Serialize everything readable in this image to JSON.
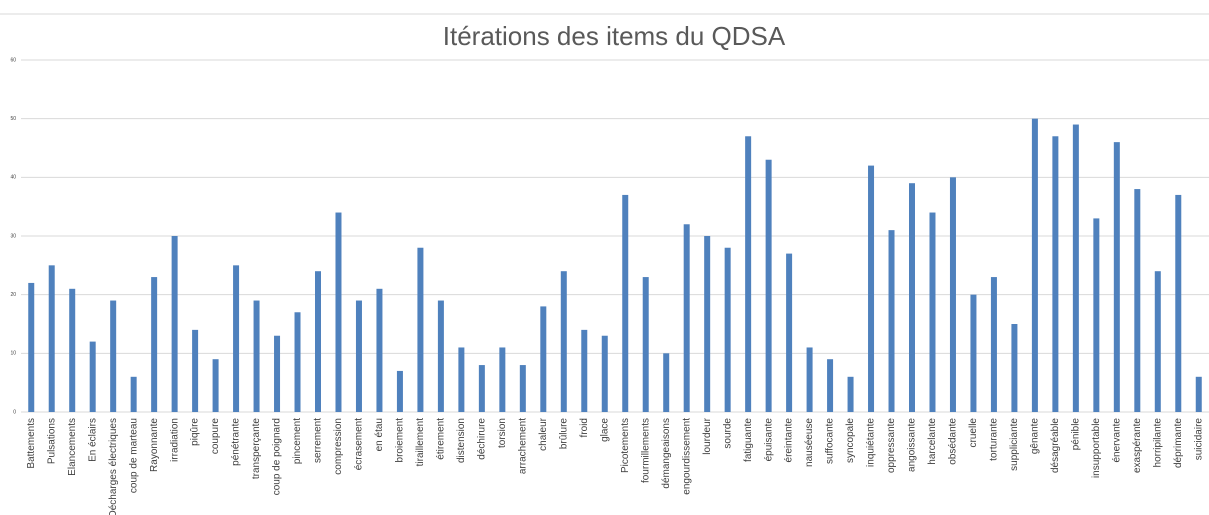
{
  "chart_data": {
    "type": "bar",
    "title": "Itérations des items du QDSA",
    "categories": [
      "Battements",
      "Pulsations",
      "Elancements",
      "En éclairs",
      "Décharges électriques",
      "coup de marteau",
      "Rayonnante",
      "irradiation",
      "piqûre",
      "coupure",
      "pénétrante",
      "transperçante",
      "coup de poignard",
      "pincement",
      "serrement",
      "compression",
      "écrasement",
      "en étau",
      "broiement",
      "tiraillement",
      "étirement",
      "distension",
      "déchirure",
      "torsion",
      "arrachement",
      "chaleur",
      "brûlure",
      "froid",
      "glace",
      "Picotements",
      "fourmillements",
      "démangeaisons",
      "engourdissement",
      "lourdeur",
      "sourde",
      "fatiguante",
      "épuisante",
      "éreintante",
      "nauséeuse",
      "suffocante",
      "syncopale",
      "inquiétante",
      "oppressante",
      "angoissante",
      "harcelante",
      "obsédante",
      "cruelle",
      "torturante",
      "suppliciante",
      "gênante",
      "désagréable",
      "pénible",
      "insupportable",
      "énervante",
      "exaspérante",
      "horripilante",
      "déprimante",
      "suicidaire"
    ],
    "values": [
      22,
      25,
      21,
      12,
      19,
      6,
      23,
      30,
      14,
      9,
      25,
      19,
      13,
      17,
      24,
      34,
      19,
      21,
      7,
      28,
      19,
      11,
      8,
      11,
      8,
      18,
      24,
      14,
      13,
      37,
      23,
      10,
      32,
      30,
      28,
      47,
      43,
      27,
      11,
      9,
      6,
      42,
      31,
      39,
      34,
      40,
      20,
      23,
      15,
      50,
      47,
      49,
      33,
      46,
      38,
      24,
      37,
      6
    ],
    "color": "#4f81bd",
    "ylim": [
      0,
      60
    ],
    "yticks": [
      0,
      10,
      20,
      30,
      40,
      50,
      60
    ],
    "grid": true
  }
}
